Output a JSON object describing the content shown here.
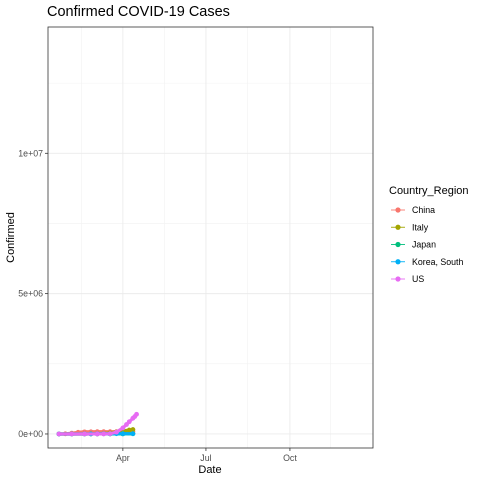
{
  "chart_data": {
    "type": "line",
    "title": "Confirmed COVID-19 Cases",
    "xlabel": "Date",
    "ylabel": "Confirmed",
    "x_axis": {
      "range": [
        "2020-01-10",
        "2020-12-31"
      ],
      "ticks": [
        {
          "value": "2020-04-01",
          "label": "Apr"
        },
        {
          "value": "2020-07-01",
          "label": "Jul"
        },
        {
          "value": "2020-10-01",
          "label": "Oct"
        }
      ]
    },
    "y_axis": {
      "range": [
        -500000,
        14500000
      ],
      "ticks": [
        {
          "value": 0,
          "label": "0e+00"
        },
        {
          "value": 5000000,
          "label": "5e+06"
        },
        {
          "value": 10000000,
          "label": "1e+07"
        }
      ]
    },
    "grid": true,
    "legend": {
      "title": "Country_Region",
      "placement": "right"
    },
    "series": [
      {
        "name": "China",
        "color": "#F8766D",
        "points": [
          {
            "x": "2020-01-22",
            "y": 548
          },
          {
            "x": "2020-01-29",
            "y": 6000
          },
          {
            "x": "2020-02-05",
            "y": 28000
          },
          {
            "x": "2020-02-12",
            "y": 60000
          },
          {
            "x": "2020-02-19",
            "y": 75000
          },
          {
            "x": "2020-02-26",
            "y": 78500
          },
          {
            "x": "2020-03-04",
            "y": 80400
          },
          {
            "x": "2020-03-11",
            "y": 80900
          },
          {
            "x": "2020-03-18",
            "y": 81100
          },
          {
            "x": "2020-03-25",
            "y": 81600
          },
          {
            "x": "2020-04-01",
            "y": 82300
          },
          {
            "x": "2020-04-08",
            "y": 82800
          },
          {
            "x": "2020-04-12",
            "y": 83100
          }
        ]
      },
      {
        "name": "Italy",
        "color": "#A3A500",
        "points": [
          {
            "x": "2020-01-22",
            "y": 0
          },
          {
            "x": "2020-02-05",
            "y": 2
          },
          {
            "x": "2020-02-19",
            "y": 3
          },
          {
            "x": "2020-02-26",
            "y": 453
          },
          {
            "x": "2020-03-04",
            "y": 3089
          },
          {
            "x": "2020-03-11",
            "y": 12462
          },
          {
            "x": "2020-03-18",
            "y": 35713
          },
          {
            "x": "2020-03-25",
            "y": 74386
          },
          {
            "x": "2020-04-01",
            "y": 110574
          },
          {
            "x": "2020-04-08",
            "y": 139422
          },
          {
            "x": "2020-04-12",
            "y": 156363
          }
        ]
      },
      {
        "name": "Japan",
        "color": "#00BF7D",
        "points": [
          {
            "x": "2020-01-22",
            "y": 2
          },
          {
            "x": "2020-02-05",
            "y": 22
          },
          {
            "x": "2020-02-19",
            "y": 84
          },
          {
            "x": "2020-03-04",
            "y": 293
          },
          {
            "x": "2020-03-18",
            "y": 878
          },
          {
            "x": "2020-04-01",
            "y": 2384
          },
          {
            "x": "2020-04-12",
            "y": 7255
          }
        ]
      },
      {
        "name": "Korea, South",
        "color": "#00B0F6",
        "points": [
          {
            "x": "2020-01-22",
            "y": 1
          },
          {
            "x": "2020-02-05",
            "y": 19
          },
          {
            "x": "2020-02-19",
            "y": 31
          },
          {
            "x": "2020-02-26",
            "y": 1261
          },
          {
            "x": "2020-03-04",
            "y": 5621
          },
          {
            "x": "2020-03-11",
            "y": 7755
          },
          {
            "x": "2020-03-18",
            "y": 8413
          },
          {
            "x": "2020-03-25",
            "y": 9137
          },
          {
            "x": "2020-04-01",
            "y": 9887
          },
          {
            "x": "2020-04-12",
            "y": 10512
          }
        ]
      },
      {
        "name": "US",
        "color": "#E76BF3",
        "points": [
          {
            "x": "2020-01-22",
            "y": 1
          },
          {
            "x": "2020-02-05",
            "y": 12
          },
          {
            "x": "2020-02-19",
            "y": 15
          },
          {
            "x": "2020-03-04",
            "y": 153
          },
          {
            "x": "2020-03-11",
            "y": 1281
          },
          {
            "x": "2020-03-18",
            "y": 9197
          },
          {
            "x": "2020-03-25",
            "y": 65778
          },
          {
            "x": "2020-04-01",
            "y": 215003
          },
          {
            "x": "2020-04-05",
            "y": 337000
          },
          {
            "x": "2020-04-08",
            "y": 435000
          },
          {
            "x": "2020-04-12",
            "y": 560000
          },
          {
            "x": "2020-04-14",
            "y": 620000
          },
          {
            "x": "2020-04-16",
            "y": 700000
          }
        ]
      }
    ]
  }
}
